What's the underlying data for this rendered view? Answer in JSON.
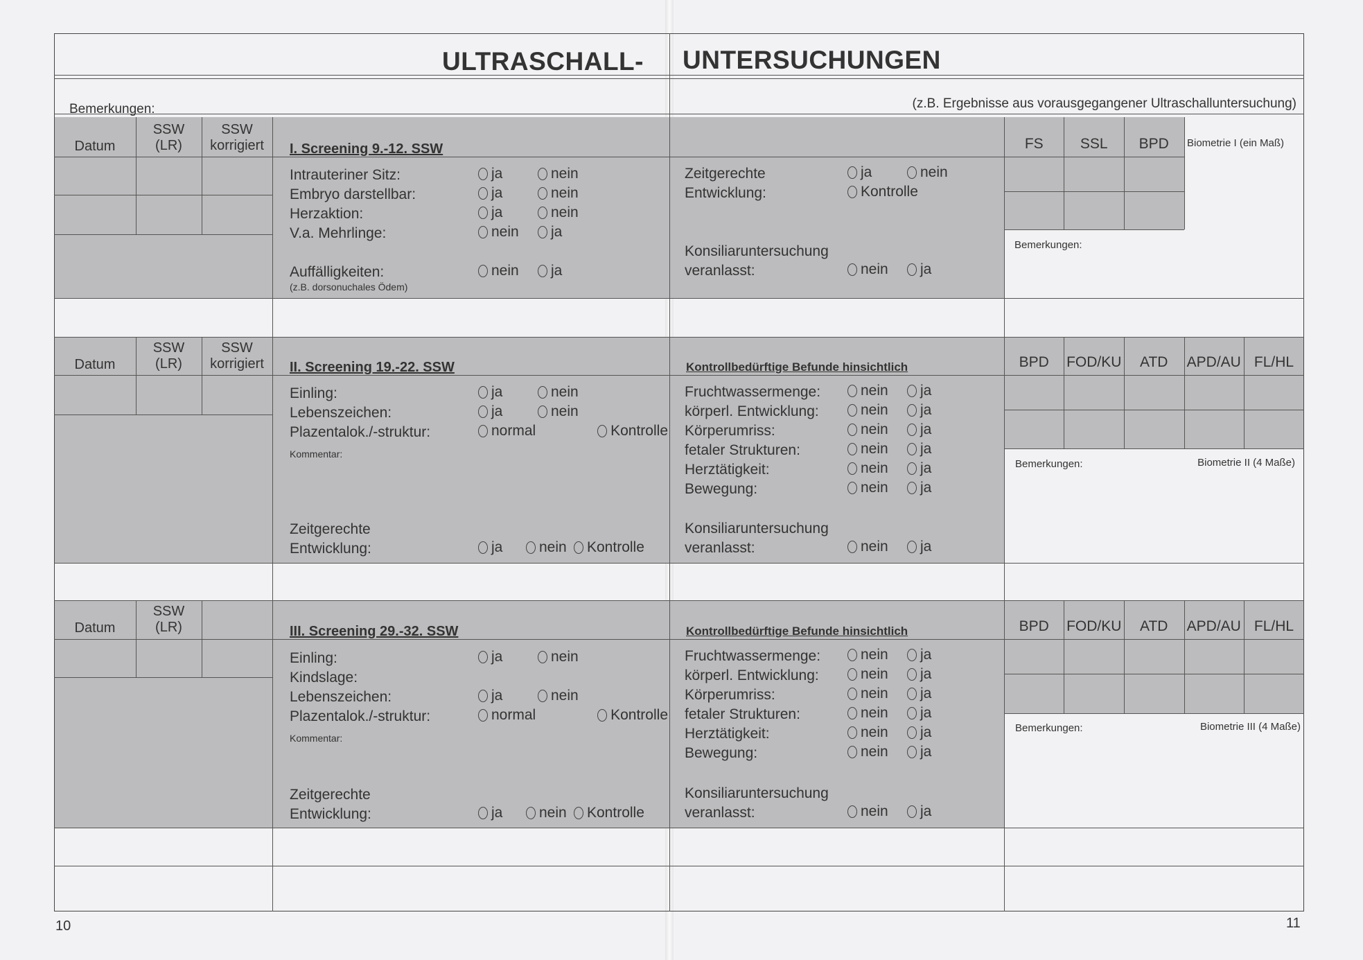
{
  "title": {
    "left": "ULTRASCHALL-",
    "right": "UNTERSUCHUNGEN"
  },
  "remarks_label": "Bemerkungen:",
  "remarks_hint": "(z.B. Ergebnisse aus vorausgegangener Ultraschalluntersuchung)",
  "columns": {
    "datum": "Datum",
    "ssw_lr": "SSW\n(LR)",
    "ssw_korr": "SSW\nkorrigiert"
  },
  "s1": {
    "header": "I. Screening 9.-12. SSW",
    "rows": [
      {
        "label": "Intrauteriner Sitz:",
        "options": [
          "ja",
          "nein"
        ]
      },
      {
        "label": "Embryo darstellbar:",
        "options": [
          "ja",
          "nein"
        ]
      },
      {
        "label": "Herzaktion:",
        "options": [
          "ja",
          "nein"
        ]
      },
      {
        "label": "V.a. Mehrlinge:",
        "options": [
          "nein",
          "ja"
        ]
      }
    ],
    "auff": {
      "label": "Auffälligkeiten:",
      "options": [
        "nein",
        "ja"
      ]
    },
    "auff_note": "(z.B. dorsonuchales Ödem)",
    "right_rows": [
      {
        "label": "Zeitgerechte",
        "options": [
          "ja",
          "nein"
        ]
      },
      {
        "label": "Entwicklung:",
        "options": [
          "Kontrolle"
        ]
      }
    ],
    "konsil": [
      {
        "label": "Konsiliaruntersuchung",
        "options": []
      },
      {
        "label": "veranlasst:",
        "options": [
          "nein",
          "ja"
        ]
      }
    ],
    "bio_cols": [
      "FS",
      "SSL",
      "BPD"
    ],
    "bio_label": "Biometrie I (ein Maß)",
    "bem": "Bemerkungen:"
  },
  "s2": {
    "header": "II. Screening 19.-22. SSW",
    "rows": [
      {
        "label": "Einling:",
        "options": [
          "ja",
          "nein"
        ]
      },
      {
        "label": "Lebenszeichen:",
        "options": [
          "ja",
          "nein"
        ]
      },
      {
        "label": "Plazentalok./-struktur:",
        "options": [
          "normal",
          "Kontrolle"
        ]
      }
    ],
    "kommentar": "Kommentar:",
    "zeit": [
      {
        "label": "Zeitgerechte",
        "options": []
      },
      {
        "label": "Entwicklung:",
        "options": [
          "ja",
          "nein",
          "Kontrolle"
        ]
      }
    ],
    "right_header": "Kontrollbedürftige Befunde hinsichtlich",
    "right_rows": [
      {
        "label": "Fruchtwassermenge:",
        "options": [
          "nein",
          "ja"
        ]
      },
      {
        "label": "körperl. Entwicklung:",
        "options": [
          "nein",
          "ja"
        ]
      },
      {
        "label": "Körperumriss:",
        "options": [
          "nein",
          "ja"
        ]
      },
      {
        "label": "fetaler Strukturen:",
        "options": [
          "nein",
          "ja"
        ]
      },
      {
        "label": "Herztätigkeit:",
        "options": [
          "nein",
          "ja"
        ]
      },
      {
        "label": "Bewegung:",
        "options": [
          "nein",
          "ja"
        ]
      }
    ],
    "konsil": [
      {
        "label": "Konsiliaruntersuchung",
        "options": []
      },
      {
        "label": "veranlasst:",
        "options": [
          "nein",
          "ja"
        ]
      }
    ],
    "bio_cols": [
      "BPD",
      "FOD/KU",
      "ATD",
      "APD/AU",
      "FL/HL"
    ],
    "bio_label": "Biometrie II (4 Maße)",
    "bem": "Bemerkungen:"
  },
  "s3": {
    "header": "III. Screening 29.-32. SSW",
    "rows": [
      {
        "label": "Einling:",
        "options": [
          "ja",
          "nein"
        ]
      },
      {
        "label": "Kindslage:",
        "options": []
      },
      {
        "label": "Lebenszeichen:",
        "options": [
          "ja",
          "nein"
        ]
      },
      {
        "label": "Plazentalok./-struktur:",
        "options": [
          "normal",
          "Kontrolle"
        ]
      }
    ],
    "kommentar": "Kommentar:",
    "zeit": [
      {
        "label": "Zeitgerechte",
        "options": []
      },
      {
        "label": "Entwicklung:",
        "options": [
          "ja",
          "nein",
          "Kontrolle"
        ]
      }
    ],
    "right_header": "Kontrollbedürftige Befunde hinsichtlich",
    "right_rows": [
      {
        "label": "Fruchtwassermenge:",
        "options": [
          "nein",
          "ja"
        ]
      },
      {
        "label": "körperl. Entwicklung:",
        "options": [
          "nein",
          "ja"
        ]
      },
      {
        "label": "Körperumriss:",
        "options": [
          "nein",
          "ja"
        ]
      },
      {
        "label": "fetaler Strukturen:",
        "options": [
          "nein",
          "ja"
        ]
      },
      {
        "label": "Herztätigkeit:",
        "options": [
          "nein",
          "ja"
        ]
      },
      {
        "label": "Bewegung:",
        "options": [
          "nein",
          "ja"
        ]
      }
    ],
    "konsil": [
      {
        "label": "Konsiliaruntersuchung",
        "options": []
      },
      {
        "label": "veranlasst:",
        "options": [
          "nein",
          "ja"
        ]
      }
    ],
    "bio_cols": [
      "BPD",
      "FOD/KU",
      "ATD",
      "APD/AU",
      "FL/HL"
    ],
    "bio_label": "Biometrie III (4 Maße)",
    "bem": "Bemerkungen:"
  },
  "page_numbers": {
    "left": "10",
    "right": "11"
  }
}
